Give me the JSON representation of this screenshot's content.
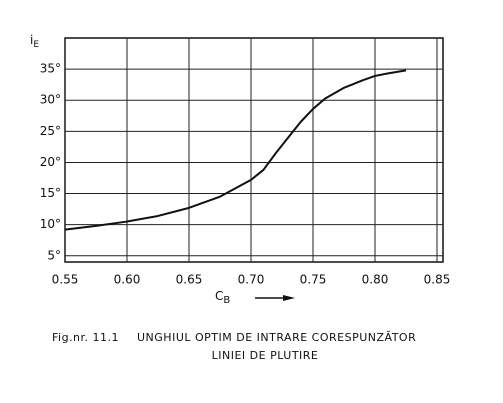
{
  "chart_data": {
    "type": "line",
    "y_label": "i",
    "y_label_sub": "E",
    "x_label": "C",
    "x_label_sub": "B",
    "caption_number": "Fig.nr. 11.1",
    "caption_lines": [
      "UNGHIUL OPTIM DE INTRARE CORESPUNZĂTOR",
      "LINIEI DE PLUTIRE"
    ],
    "x": [
      0.55,
      0.575,
      0.6,
      0.625,
      0.65,
      0.675,
      0.7,
      0.71,
      0.72,
      0.73,
      0.74,
      0.75,
      0.76,
      0.775,
      0.79,
      0.8,
      0.81,
      0.825
    ],
    "series": [
      {
        "color": "#111111",
        "values": [
          9.2,
          9.8,
          10.5,
          11.4,
          12.7,
          14.5,
          17.2,
          18.8,
          21.5,
          24.0,
          26.5,
          28.6,
          30.3,
          32.0,
          33.2,
          33.9,
          34.3,
          34.8
        ]
      }
    ],
    "xlim": [
      0.55,
      0.85
    ],
    "ylim": [
      4,
      40
    ],
    "xticks": [
      {
        "value": 0.55,
        "label": "0.55"
      },
      {
        "value": 0.6,
        "label": "0.60"
      },
      {
        "value": 0.65,
        "label": "0.65"
      },
      {
        "value": 0.7,
        "label": "0.70"
      },
      {
        "value": 0.75,
        "label": "0.75"
      },
      {
        "value": 0.8,
        "label": "0.80"
      },
      {
        "value": 0.85,
        "label": "0.85"
      }
    ],
    "yticks": [
      {
        "value": 5,
        "label": "5°"
      },
      {
        "value": 10,
        "label": "10°"
      },
      {
        "value": 15,
        "label": "15°"
      },
      {
        "value": 20,
        "label": "20°"
      },
      {
        "value": 25,
        "label": "25°"
      },
      {
        "value": 30,
        "label": "30°"
      },
      {
        "value": 35,
        "label": "35°"
      }
    ],
    "grid": true
  }
}
